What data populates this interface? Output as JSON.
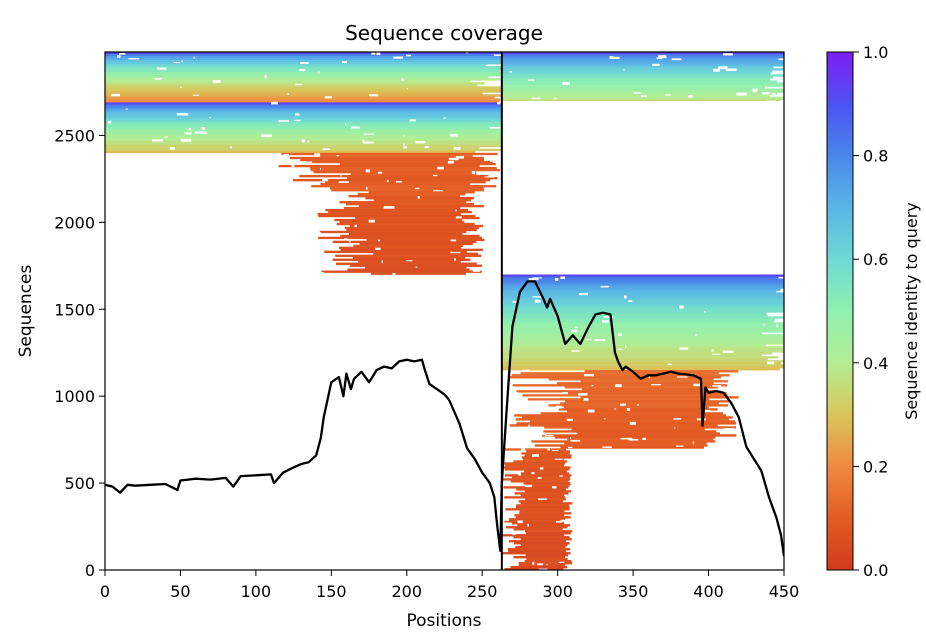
{
  "chart_data": {
    "type": "heatmap",
    "title": "Sequence coverage",
    "xlabel": "Positions",
    "ylabel": "Sequences",
    "xlim": [
      0,
      450
    ],
    "ylim": [
      0,
      2980
    ],
    "xticks": [
      0,
      50,
      100,
      150,
      200,
      250,
      300,
      350,
      400,
      450
    ],
    "yticks": [
      0,
      500,
      1000,
      1500,
      2000,
      2500
    ],
    "domain_boundary": 263,
    "colorbar": {
      "label": "Sequence identity to query",
      "range": [
        0.0,
        1.0
      ],
      "ticks": [
        "0.0",
        "0.2",
        "0.4",
        "0.6",
        "0.8",
        "1.0"
      ]
    },
    "alignment_blocks": [
      {
        "x0": 0,
        "x1": 263,
        "seq0": 2690,
        "seq1": 2980,
        "id_top": 0.92,
        "id_bottom": 0.2
      },
      {
        "x0": 0,
        "x1": 263,
        "seq0": 2400,
        "seq1": 2690,
        "id_top": 0.92,
        "id_bottom": 0.3
      },
      {
        "x0": 115,
        "x1": 262,
        "seq0": 2180,
        "seq1": 2400,
        "id_top": 0.12,
        "id_bottom": 0.1
      },
      {
        "x0": 140,
        "x1": 252,
        "seq0": 1700,
        "seq1": 2180,
        "id_top": 0.1,
        "id_bottom": 0.06
      },
      {
        "x0": 263,
        "x1": 450,
        "seq0": 2700,
        "seq1": 2980,
        "id_top": 0.92,
        "id_bottom": 0.38
      },
      {
        "x0": 263,
        "x1": 450,
        "seq0": 1150,
        "seq1": 1700,
        "id_top": 0.92,
        "id_bottom": 0.3
      },
      {
        "x0": 263,
        "x1": 420,
        "seq0": 700,
        "seq1": 1150,
        "id_top": 0.15,
        "id_bottom": 0.1
      },
      {
        "x0": 263,
        "x1": 310,
        "seq0": 0,
        "seq1": 700,
        "id_top": 0.1,
        "id_bottom": 0.05
      }
    ],
    "coverage_line": {
      "x": [
        0,
        5,
        10,
        15,
        20,
        30,
        40,
        48,
        50,
        55,
        60,
        70,
        80,
        85,
        90,
        100,
        110,
        112,
        118,
        125,
        130,
        135,
        140,
        143,
        145,
        150,
        155,
        158,
        160,
        163,
        165,
        170,
        175,
        180,
        185,
        190,
        195,
        200,
        205,
        210,
        212,
        215,
        220,
        225,
        228,
        232,
        235,
        240,
        245,
        250,
        255,
        258,
        260,
        262,
        263,
        266,
        270,
        275,
        280,
        285,
        290,
        293,
        295,
        300,
        305,
        310,
        315,
        320,
        325,
        330,
        335,
        338,
        340,
        343,
        345,
        350,
        355,
        360,
        365,
        370,
        375,
        380,
        385,
        390,
        395,
        396,
        398,
        400,
        405,
        410,
        415,
        420,
        425,
        430,
        435,
        440,
        445,
        448,
        450
      ],
      "y": [
        490,
        480,
        445,
        490,
        485,
        490,
        495,
        460,
        515,
        520,
        525,
        520,
        530,
        480,
        540,
        545,
        550,
        500,
        560,
        590,
        610,
        620,
        660,
        760,
        880,
        1080,
        1110,
        1000,
        1130,
        1040,
        1100,
        1140,
        1080,
        1150,
        1170,
        1160,
        1200,
        1210,
        1200,
        1210,
        1150,
        1070,
        1040,
        1010,
        980,
        900,
        840,
        700,
        640,
        560,
        500,
        420,
        250,
        110,
        500,
        900,
        1400,
        1600,
        1660,
        1660,
        1570,
        1510,
        1560,
        1460,
        1300,
        1350,
        1300,
        1390,
        1470,
        1480,
        1470,
        1250,
        1200,
        1150,
        1170,
        1140,
        1100,
        1120,
        1120,
        1130,
        1140,
        1130,
        1125,
        1120,
        1100,
        830,
        1050,
        1020,
        1030,
        1020,
        960,
        880,
        710,
        640,
        570,
        420,
        300,
        200,
        80
      ]
    }
  }
}
